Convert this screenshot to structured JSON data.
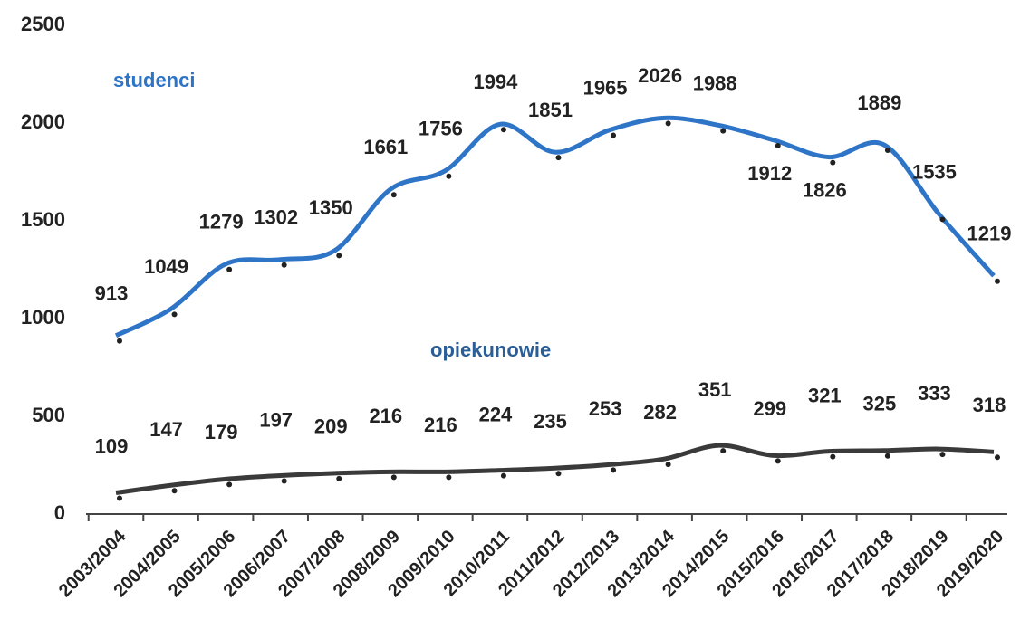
{
  "chart_data": {
    "type": "line",
    "categories": [
      "2003/2004",
      "2004/2005",
      "2005/2006",
      "2006/2007",
      "2007/2008",
      "2008/2009",
      "2009/2010",
      "2010/2011",
      "2011/2012",
      "2012/2013",
      "2013/2014",
      "2014/2015",
      "2015/2016",
      "2016/2017",
      "2017/2018",
      "2018/2019",
      "2019/2020"
    ],
    "series": [
      {
        "name": "studenci",
        "color": "#2e75c8",
        "values": [
          913,
          1049,
          1279,
          1302,
          1350,
          1661,
          1756,
          1994,
          1851,
          1965,
          2026,
          1988,
          1912,
          1826,
          1889,
          1535,
          1219
        ]
      },
      {
        "name": "opiekunowie",
        "color": "#3a3a3a",
        "values": [
          109,
          147,
          179,
          197,
          209,
          216,
          216,
          224,
          235,
          253,
          282,
          351,
          299,
          321,
          325,
          333,
          318
        ]
      }
    ],
    "ylim": [
      0,
      2500
    ],
    "yticks": [
      0,
      500,
      1000,
      1500,
      2000,
      2500
    ],
    "grid": false
  }
}
